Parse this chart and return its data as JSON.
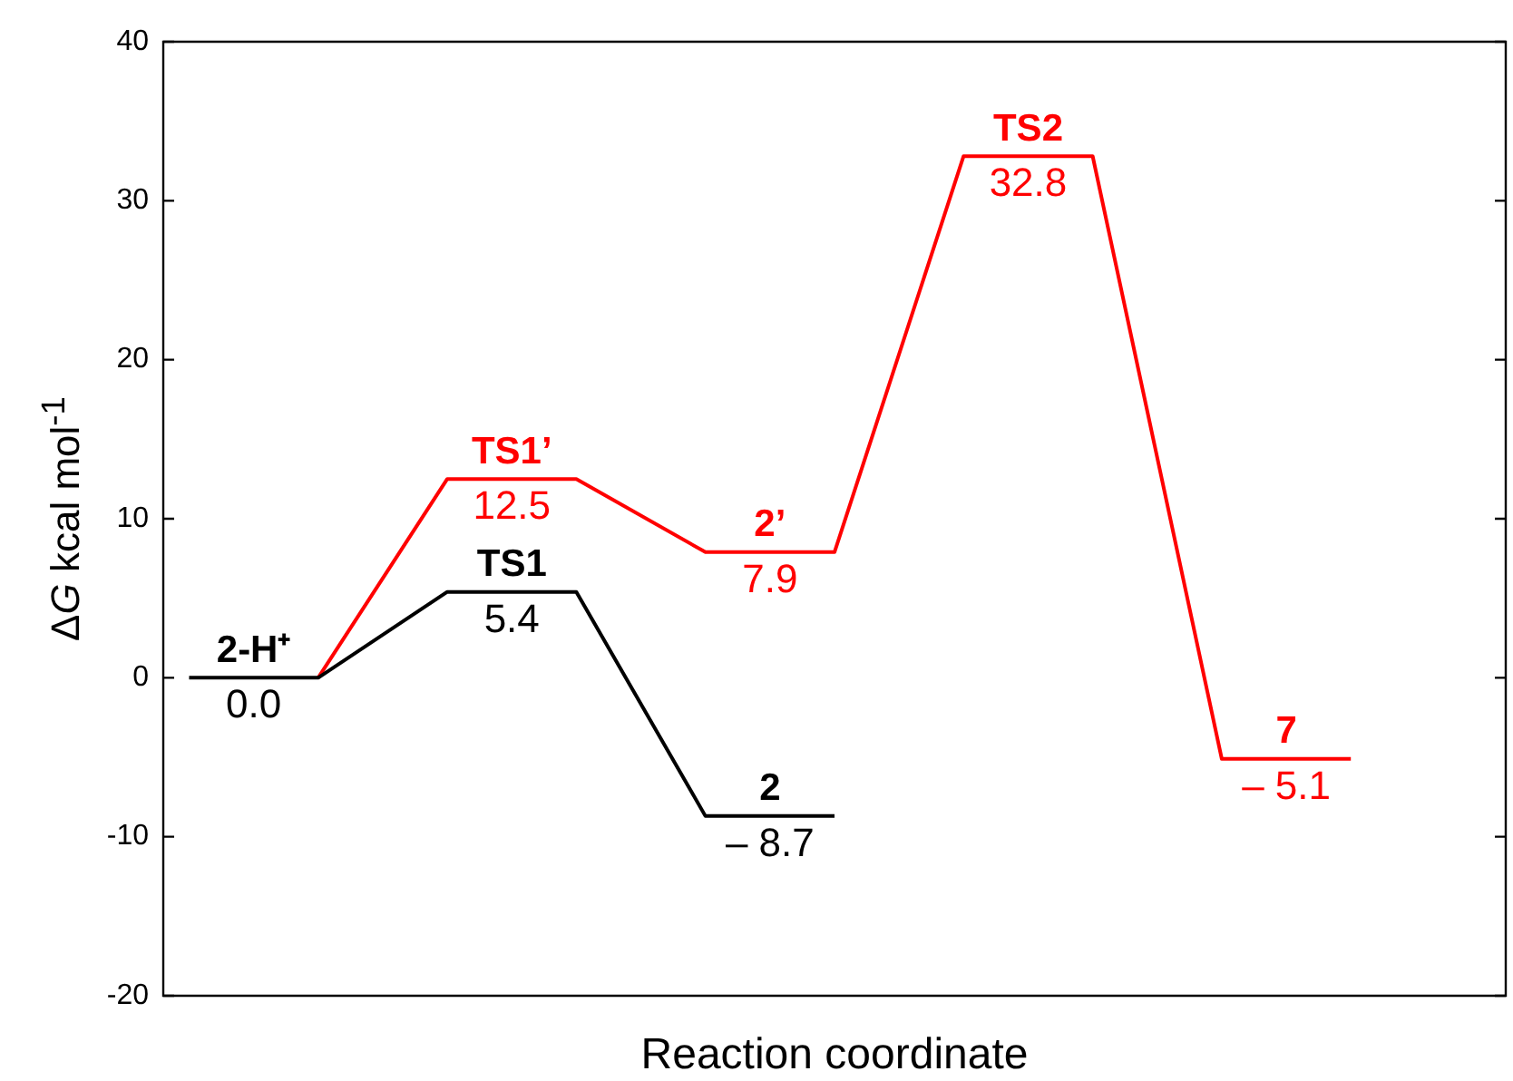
{
  "chart_data": {
    "type": "line",
    "xlabel": "Reaction coordinate",
    "ylabel": "ΔG kcal mol$^{-1}$",
    "categories": [
      null,
      null,
      null,
      null,
      null,
      null,
      null,
      null,
      null,
      null
    ],
    "series": [
      {
        "color": "#000000",
        "values": [
          0,
          0,
          5.4,
          5.4,
          -8.7,
          -8.7,
          null,
          null,
          null,
          null
        ],
        "value_labels": [
          "0.0",
          null,
          "5.4",
          null,
          "– 8.7",
          null,
          null,
          null,
          null,
          null
        ]
      },
      {
        "color": "#ff0000",
        "values": [
          null,
          0,
          12.5,
          12.5,
          7.9,
          7.9,
          32.8,
          32.8,
          -5.1,
          -5.1
        ],
        "value_labels": [
          null,
          null,
          "12.5",
          null,
          "7.9",
          null,
          "32.8",
          null,
          "– 5.1",
          null
        ]
      }
    ],
    "annotations": [
      {
        "text": "2-H⁺",
        "y": 0
      },
      {
        "text": "TS1",
        "y": 5.4
      },
      {
        "text": "2",
        "y": -8.7
      },
      {
        "text": "TS1’",
        "y": 12.5
      },
      {
        "text": "2’",
        "y": 7.9
      },
      {
        "text": "TS2",
        "y": 32.8
      },
      {
        "text": "7",
        "y": -5.1
      }
    ],
    "ylim": [
      -20,
      40
    ],
    "yticks": [
      -20,
      -10,
      0,
      10,
      20,
      30,
      40
    ],
    "tick_labels": "y",
    "grid": false,
    "legend": false,
    "marker": "none",
    "line_style": "solid"
  }
}
